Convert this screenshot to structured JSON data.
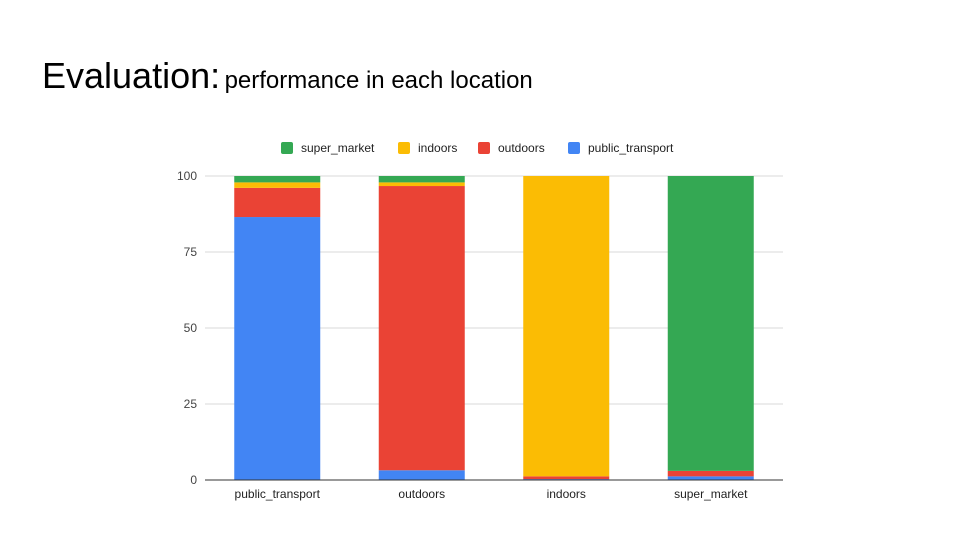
{
  "slide": {
    "title_main": "Evaluation:",
    "title_sub": "performance in each location"
  },
  "chart_data": {
    "type": "bar",
    "stacked": true,
    "categories": [
      "public_transport",
      "outdoors",
      "indoors",
      "super_market"
    ],
    "series": [
      {
        "name": "public_transport",
        "color": "#4285F4",
        "values": [
          86.5,
          3.2,
          0.3,
          1.2
        ]
      },
      {
        "name": "outdoors",
        "color": "#EA4335",
        "values": [
          9.6,
          93.5,
          0.9,
          1.8
        ]
      },
      {
        "name": "indoors",
        "color": "#FBBC04",
        "values": [
          1.8,
          1.2,
          98.8,
          0
        ]
      },
      {
        "name": "super_market",
        "color": "#34A853",
        "values": [
          2.1,
          2.1,
          0,
          97.0
        ]
      }
    ],
    "legend_order": [
      "super_market",
      "indoors",
      "outdoors",
      "public_transport"
    ],
    "legend_position": "top",
    "ylim": [
      0,
      100
    ],
    "yticks": [
      0,
      25,
      50,
      75,
      100
    ],
    "grid": true,
    "title": "",
    "xlabel": "",
    "ylabel": ""
  }
}
